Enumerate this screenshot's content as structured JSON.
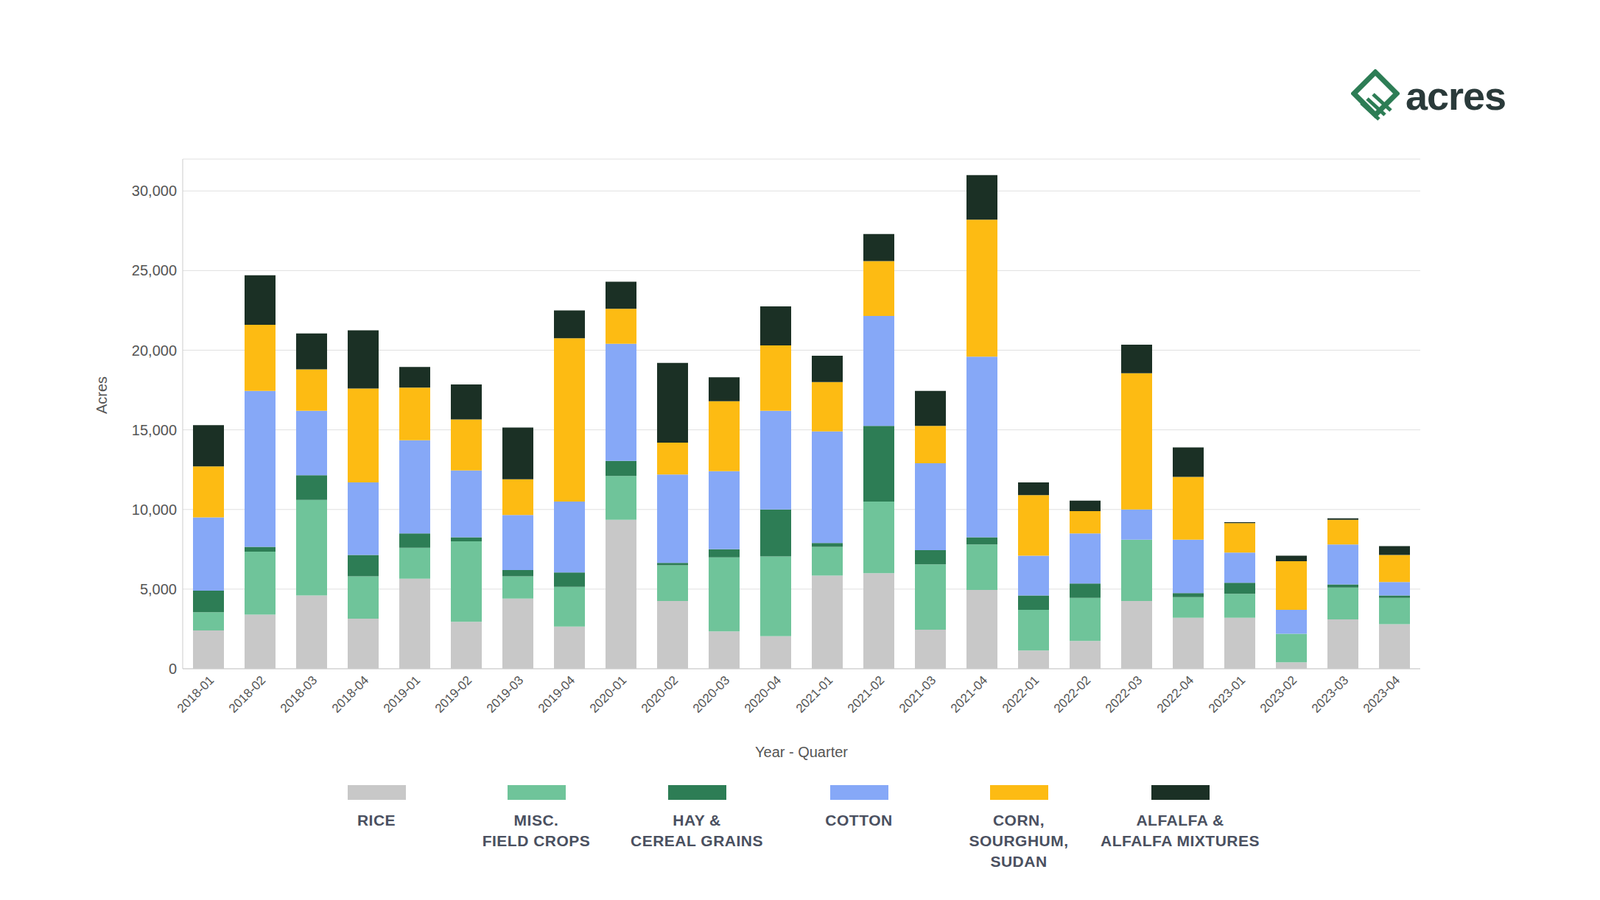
{
  "chart_data": {
    "type": "bar",
    "logo": "acres",
    "x_label": "Year - Quarter",
    "y_label": "Acres",
    "stacked": true,
    "grid": true,
    "legend": "bottom",
    "categories": [
      "2018-01",
      "2018-02",
      "2018-03",
      "2018-04",
      "2019-01",
      "2019-02",
      "2019-03",
      "2019-04",
      "2020-01",
      "2020-02",
      "2020-03",
      "2020-04",
      "2021-01",
      "2021-02",
      "2021-03",
      "2021-04",
      "2022-01",
      "2022-02",
      "2022-03",
      "2022-04",
      "2023-01",
      "2023-02",
      "2023-03",
      "2023-04"
    ],
    "ylim": [
      0,
      32000
    ],
    "yticks": [
      0,
      {
        "value": 5000,
        "label": "5,000"
      },
      {
        "value": 10000,
        "label": "10,000"
      },
      {
        "value": 15000,
        "label": "15,000"
      },
      {
        "value": 20000,
        "label": "20,000"
      },
      {
        "value": 25000,
        "label": "25,000"
      },
      {
        "value": 30000,
        "label": "30,000"
      }
    ],
    "series": [
      {
        "name": "RICE",
        "color": "#c8c8c8",
        "values": [
          2400,
          3400,
          4600,
          3150,
          5650,
          2950,
          4400,
          2650,
          9350,
          4250,
          2350,
          2050,
          5850,
          6000,
          2450,
          4950,
          1150,
          1750,
          4250,
          3200,
          3200,
          400,
          3100,
          2800
        ]
      },
      {
        "name": "MISC.\nFIELD CROPS",
        "color": "#6fc49a",
        "values": [
          1150,
          3950,
          6000,
          2650,
          1950,
          5050,
          1400,
          2500,
          2750,
          2250,
          4650,
          5000,
          1800,
          4500,
          4100,
          2850,
          2550,
          2700,
          3850,
          1300,
          1500,
          1800,
          2000,
          1650
        ]
      },
      {
        "name": "HAY &\nCEREAL GRAINS",
        "color": "#2d7d55",
        "values": [
          1350,
          300,
          1550,
          1350,
          900,
          250,
          400,
          900,
          950,
          150,
          500,
          2950,
          250,
          4750,
          900,
          450,
          900,
          900,
          0,
          250,
          700,
          0,
          200,
          150
        ]
      },
      {
        "name": "COTTON",
        "color": "#86a8f7",
        "values": [
          4600,
          9800,
          4050,
          4550,
          5850,
          4200,
          3450,
          4450,
          7350,
          5550,
          4900,
          6200,
          7000,
          6900,
          5450,
          11350,
          2500,
          3150,
          1900,
          3350,
          1900,
          1500,
          2500,
          850
        ]
      },
      {
        "name": "CORN,\nSOURGHUM,\nSUDAN",
        "color": "#fdbb13",
        "values": [
          3200,
          4150,
          2600,
          5900,
          3300,
          3200,
          2250,
          10250,
          2200,
          2000,
          4400,
          4100,
          3100,
          3450,
          2350,
          8600,
          3800,
          1400,
          8550,
          3950,
          1850,
          3050,
          1550,
          1700
        ]
      },
      {
        "name": "ALFALFA &\nALFALFA MIXTURES",
        "color": "#1b3025",
        "values": [
          2600,
          3100,
          2250,
          3650,
          1300,
          2200,
          3250,
          1750,
          1700,
          5000,
          1500,
          2450,
          1650,
          1700,
          2200,
          2800,
          800,
          650,
          1800,
          1850,
          50,
          350,
          100,
          550
        ]
      }
    ]
  }
}
